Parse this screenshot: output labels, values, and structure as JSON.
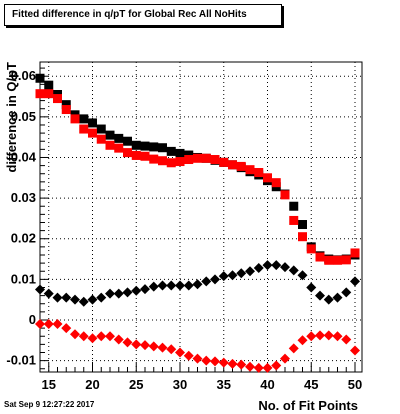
{
  "title": "Fitted difference in q/pT for Global Rec All NoHits",
  "timestamp": "Sat Sep  9 12:27:22 2017",
  "chart_data": {
    "type": "scatter",
    "title": "Fitted difference in q/pT for Global Rec All NoHits",
    "xlabel": "No. of Fit Points",
    "ylabel": "difference in Q/pT",
    "xlim": [
      14,
      50.8
    ],
    "ylim": [
      -0.0128,
      0.0635
    ],
    "grid": true,
    "xticks": [
      "15",
      "20",
      "25",
      "30",
      "35",
      "40",
      "45",
      "50"
    ],
    "yticks": [
      "-0.01",
      "0",
      "0.01",
      "0.02",
      "0.03",
      "0.04",
      "0.05",
      "0.06"
    ],
    "series": [
      {
        "color": "#000000",
        "marker": "square",
        "x": [
          14,
          15,
          16,
          17,
          18,
          19,
          20,
          21,
          22,
          23,
          24,
          25,
          26,
          27,
          28,
          29,
          30,
          31,
          32,
          33,
          34,
          35,
          36,
          37,
          38,
          39,
          40,
          41,
          42,
          43,
          44,
          45,
          46,
          47,
          48,
          49,
          50
        ],
        "y": [
          0.0595,
          0.0578,
          0.0555,
          0.053,
          0.0505,
          0.0495,
          0.0485,
          0.047,
          0.0455,
          0.0447,
          0.044,
          0.043,
          0.0428,
          0.0426,
          0.0424,
          0.0415,
          0.041,
          0.0406,
          0.04,
          0.0398,
          0.0393,
          0.0388,
          0.0382,
          0.0375,
          0.0365,
          0.0357,
          0.0343,
          0.0328,
          0.031,
          0.028,
          0.0235,
          0.018,
          0.0158,
          0.015,
          0.0148,
          0.015,
          0.016
        ]
      },
      {
        "color": "#ff0000",
        "marker": "square",
        "x": [
          14,
          15,
          16,
          17,
          18,
          19,
          20,
          21,
          22,
          23,
          24,
          25,
          26,
          27,
          28,
          29,
          30,
          31,
          32,
          33,
          34,
          35,
          36,
          37,
          38,
          39,
          40,
          41,
          42,
          43,
          44,
          45,
          46,
          47,
          48,
          49,
          50
        ],
        "y": [
          0.0557,
          0.0557,
          0.0545,
          0.0518,
          0.0495,
          0.047,
          0.046,
          0.0445,
          0.043,
          0.0423,
          0.0412,
          0.0405,
          0.0403,
          0.0396,
          0.0392,
          0.0387,
          0.039,
          0.0395,
          0.0398,
          0.0398,
          0.0395,
          0.0388,
          0.0382,
          0.0378,
          0.037,
          0.0363,
          0.035,
          0.0338,
          0.0308,
          0.0245,
          0.0205,
          0.0175,
          0.0155,
          0.0147,
          0.0147,
          0.0148,
          0.0165
        ]
      },
      {
        "color": "#000000",
        "marker": "diamond",
        "x": [
          14,
          15,
          16,
          17,
          18,
          19,
          20,
          21,
          22,
          23,
          24,
          25,
          26,
          27,
          28,
          29,
          30,
          31,
          32,
          33,
          34,
          35,
          36,
          37,
          38,
          39,
          40,
          41,
          42,
          43,
          44,
          45,
          46,
          47,
          48,
          49,
          50
        ],
        "y": [
          0.0075,
          0.0065,
          0.0055,
          0.0055,
          0.005,
          0.0045,
          0.005,
          0.0055,
          0.0065,
          0.0065,
          0.0068,
          0.0072,
          0.0076,
          0.0082,
          0.0085,
          0.0085,
          0.0085,
          0.0085,
          0.0088,
          0.0095,
          0.01,
          0.0108,
          0.011,
          0.0115,
          0.012,
          0.0128,
          0.0135,
          0.0135,
          0.013,
          0.0122,
          0.011,
          0.008,
          0.006,
          0.005,
          0.0055,
          0.0068,
          0.0095
        ]
      },
      {
        "color": "#ff0000",
        "marker": "diamond",
        "x": [
          14,
          15,
          16,
          17,
          18,
          19,
          20,
          21,
          22,
          23,
          24,
          25,
          26,
          27,
          28,
          29,
          30,
          31,
          32,
          33,
          34,
          35,
          36,
          37,
          38,
          39,
          40,
          41,
          42,
          43,
          44,
          45,
          46,
          47,
          48,
          49,
          50
        ],
        "y": [
          -0.001,
          -0.001,
          -0.001,
          -0.002,
          -0.0035,
          -0.004,
          -0.0045,
          -0.004,
          -0.004,
          -0.0048,
          -0.0055,
          -0.006,
          -0.0062,
          -0.0065,
          -0.0068,
          -0.0072,
          -0.008,
          -0.0088,
          -0.0095,
          -0.01,
          -0.0102,
          -0.0105,
          -0.0108,
          -0.011,
          -0.0115,
          -0.0118,
          -0.0118,
          -0.0112,
          -0.0095,
          -0.007,
          -0.005,
          -0.004,
          -0.0038,
          -0.0038,
          -0.004,
          -0.0048,
          -0.0075
        ]
      }
    ]
  }
}
